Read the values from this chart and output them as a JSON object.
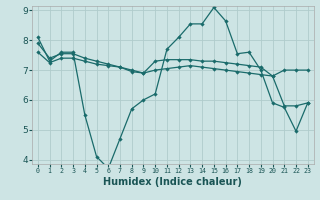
{
  "title": "",
  "xlabel": "Humidex (Indice chaleur)",
  "bg_color": "#cde4e4",
  "grid_color": "#b0cccc",
  "line_color": "#1a6b6b",
  "x": [
    0,
    1,
    2,
    3,
    4,
    5,
    6,
    7,
    8,
    9,
    10,
    11,
    12,
    13,
    14,
    15,
    16,
    17,
    18,
    19,
    20,
    21,
    22,
    23
  ],
  "line1": [
    8.1,
    7.3,
    7.6,
    7.6,
    5.5,
    4.1,
    3.7,
    4.7,
    5.7,
    6.0,
    6.2,
    7.7,
    8.1,
    8.55,
    8.55,
    9.1,
    8.65,
    7.55,
    7.6,
    7.0,
    5.9,
    5.75,
    4.95,
    5.9
  ],
  "line2": [
    7.9,
    7.4,
    7.55,
    7.55,
    7.4,
    7.3,
    7.2,
    7.1,
    7.0,
    6.9,
    7.0,
    7.05,
    7.1,
    7.15,
    7.1,
    7.05,
    7.0,
    6.95,
    6.9,
    6.85,
    6.8,
    7.0,
    7.0,
    7.0
  ],
  "line3": [
    7.6,
    7.25,
    7.4,
    7.4,
    7.3,
    7.2,
    7.15,
    7.1,
    6.95,
    6.9,
    7.3,
    7.35,
    7.35,
    7.35,
    7.3,
    7.3,
    7.25,
    7.2,
    7.15,
    7.1,
    6.8,
    5.8,
    5.8,
    5.9
  ],
  "ylim": [
    4,
    9
  ],
  "xlim": [
    -0.5,
    23.5
  ],
  "yticks": [
    4,
    5,
    6,
    7,
    8,
    9
  ],
  "xticks": [
    0,
    1,
    2,
    3,
    4,
    5,
    6,
    7,
    8,
    9,
    10,
    11,
    12,
    13,
    14,
    15,
    16,
    17,
    18,
    19,
    20,
    21,
    22,
    23
  ],
  "figsize": [
    3.2,
    2.0
  ],
  "dpi": 100,
  "xlabel_fontsize": 7,
  "ytick_fontsize": 6.5,
  "xtick_fontsize": 4.8,
  "linewidth": 0.9,
  "markersize": 2.2
}
